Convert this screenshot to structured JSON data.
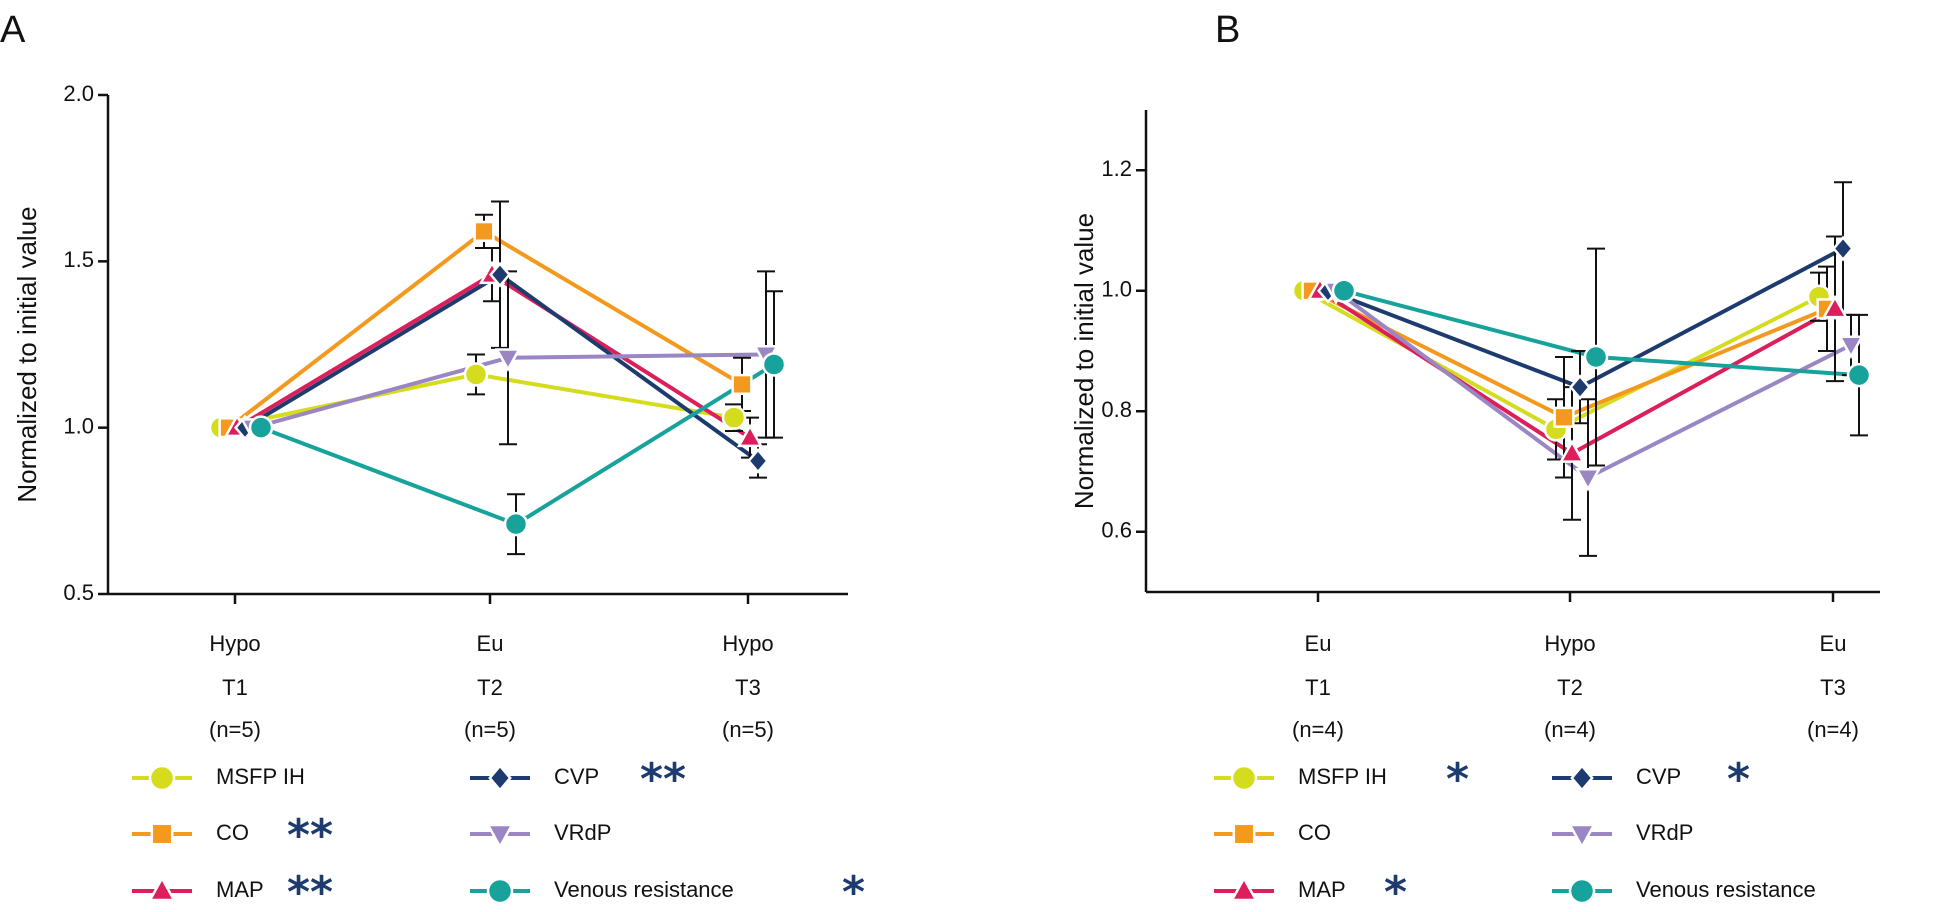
{
  "chart_data": [
    {
      "type": "line",
      "panel_label": "A",
      "ylabel": "Normalized to initial value",
      "ylim": [
        0.5,
        2.0
      ],
      "yticks": [
        "0.5",
        "1.0",
        "1.5",
        "2.0"
      ],
      "categories": [
        [
          "Hypo",
          "T1",
          "(n=5)"
        ],
        [
          "Eu",
          "T2",
          "(n=5)"
        ],
        [
          "Hypo",
          "T3",
          "(n=5)"
        ]
      ],
      "series": [
        {
          "name": "MSFP IH",
          "marker": "circle",
          "color": "#d4dc1d",
          "values": [
            1.0,
            1.16,
            1.03
          ],
          "err": [
            0,
            0.06,
            0.04
          ],
          "stars": ""
        },
        {
          "name": "CO",
          "marker": "square",
          "color": "#f39a1e",
          "values": [
            1.0,
            1.59,
            1.13
          ],
          "err": [
            0,
            0.05,
            0.08
          ],
          "stars": "**"
        },
        {
          "name": "MAP",
          "marker": "triangle-up",
          "color": "#dc1e5a",
          "values": [
            1.0,
            1.46,
            0.97
          ],
          "err": [
            0,
            0.08,
            0.06
          ],
          "stars": "**"
        },
        {
          "name": "CVP",
          "marker": "diamond",
          "color": "#1d3b6e",
          "values": [
            1.0,
            1.46,
            0.9
          ],
          "err": [
            0,
            0.22,
            0.05
          ],
          "stars": "**"
        },
        {
          "name": "VRdP",
          "marker": "triangle-down",
          "color": "#9b86c4",
          "values": [
            1.0,
            1.21,
            1.22
          ],
          "err": [
            0,
            0.26,
            0.25
          ],
          "stars": ""
        },
        {
          "name": "Venous resistance",
          "marker": "circle",
          "color": "#17a39b",
          "values": [
            1.0,
            0.71,
            1.19
          ],
          "err": [
            0,
            0.09,
            0.22
          ],
          "stars": "*"
        }
      ]
    },
    {
      "type": "line",
      "panel_label": "B",
      "ylabel": "Normalized to initial value",
      "ylim": [
        0.5,
        1.3
      ],
      "yticks": [
        "0.6",
        "0.8",
        "1.0",
        "1.2"
      ],
      "categories": [
        [
          "Eu",
          "T1",
          "(n=4)"
        ],
        [
          "Hypo",
          "T2",
          "(n=4)"
        ],
        [
          "Eu",
          "T3",
          "(n=4)"
        ]
      ],
      "series": [
        {
          "name": "MSFP IH",
          "marker": "circle",
          "color": "#d4dc1d",
          "values": [
            1.0,
            0.77,
            0.99
          ],
          "err": [
            0,
            0.05,
            0.04
          ],
          "stars": "*"
        },
        {
          "name": "CO",
          "marker": "square",
          "color": "#f39a1e",
          "values": [
            1.0,
            0.79,
            0.97
          ],
          "err": [
            0,
            0.1,
            0.07
          ],
          "stars": ""
        },
        {
          "name": "MAP",
          "marker": "triangle-up",
          "color": "#dc1e5a",
          "values": [
            1.0,
            0.73,
            0.97
          ],
          "err": [
            0,
            0.11,
            0.12
          ],
          "stars": "*"
        },
        {
          "name": "CVP",
          "marker": "diamond",
          "color": "#1d3b6e",
          "values": [
            1.0,
            0.84,
            1.07
          ],
          "err": [
            0,
            0.06,
            0.11
          ],
          "stars": "*"
        },
        {
          "name": "VRdP",
          "marker": "triangle-down",
          "color": "#9b86c4",
          "values": [
            1.0,
            0.69,
            0.91
          ],
          "err": [
            0,
            0.13,
            0.05
          ],
          "stars": ""
        },
        {
          "name": "Venous resistance",
          "marker": "circle",
          "color": "#17a39b",
          "values": [
            1.0,
            0.89,
            0.86
          ],
          "err": [
            0,
            0.18,
            0.1
          ],
          "stars": ""
        }
      ]
    }
  ]
}
